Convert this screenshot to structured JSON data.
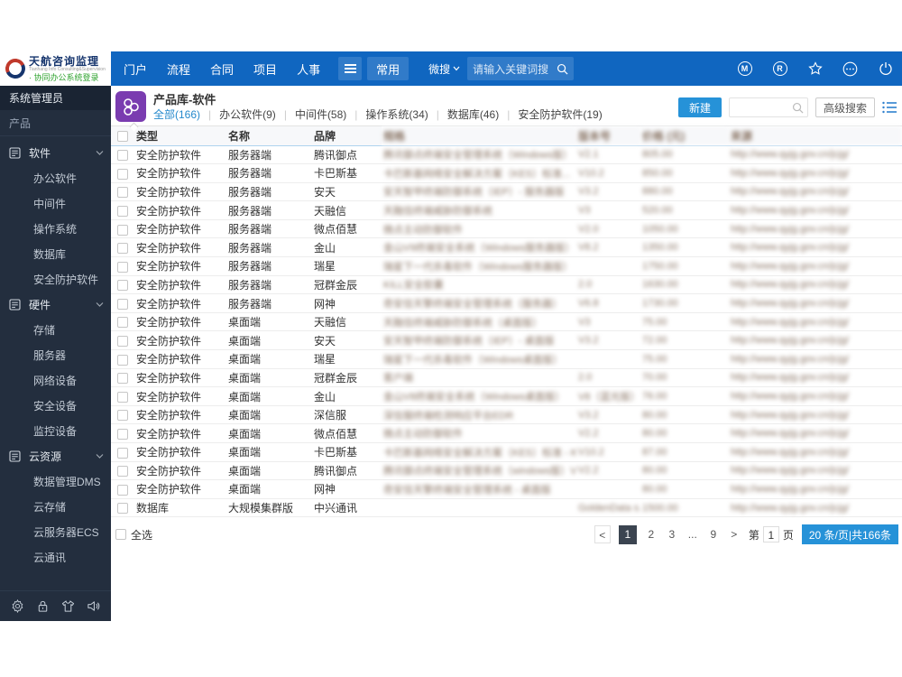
{
  "topbar": {
    "logo": {
      "title": "天航咨询监理",
      "subtitle": "Tianhang Info Consulting&Supervision",
      "tagline": "· 协同办公系统登录"
    },
    "nav_items": [
      "门户",
      "流程",
      "合同",
      "项目",
      "人事"
    ],
    "nav_active": "常用",
    "search": {
      "scope": "微搜",
      "placeholder": "请输入关键词搜"
    },
    "right_icons": [
      "m-badge",
      "r-badge",
      "star",
      "more",
      "power"
    ]
  },
  "sidebar": {
    "role": "系统管理员",
    "section": "产品",
    "groups": [
      {
        "label": "软件",
        "items": [
          "办公软件",
          "中间件",
          "操作系统",
          "数据库",
          "安全防护软件"
        ]
      },
      {
        "label": "硬件",
        "items": [
          "存储",
          "服务器",
          "网络设备",
          "安全设备",
          "监控设备"
        ]
      },
      {
        "label": "云资源",
        "items": [
          "数据管理DMS",
          "云存储",
          "云服务器ECS",
          "云通讯"
        ]
      }
    ],
    "footer_icons": [
      "gear",
      "lock",
      "theme",
      "sound"
    ]
  },
  "content": {
    "title": "产品库-软件",
    "tabs": [
      {
        "label": "全部(166)",
        "active": true
      },
      {
        "label": "办公软件(9)",
        "active": false
      },
      {
        "label": "中间件(58)",
        "active": false
      },
      {
        "label": "操作系统(34)",
        "active": false
      },
      {
        "label": "数据库(46)",
        "active": false
      },
      {
        "label": "安全防护软件(19)",
        "active": false
      }
    ],
    "toolbar": {
      "new_button": "新建",
      "advanced_search": "高级搜索"
    },
    "table": {
      "headers": {
        "type": "类型",
        "name": "名称",
        "brand": "品牌"
      },
      "blurred_headers": {
        "desc": "规格",
        "version": "版本号",
        "price": "价格 (元)",
        "source": "来源"
      },
      "rows": [
        {
          "type": "安全防护软件",
          "name": "服务器端",
          "brand": "腾讯御点",
          "desc": "腾讯御点终端安全管理系统（Windows版）",
          "version": "V2.1",
          "price": "805.00",
          "source": "http://www.qyjg.gov.cn/jcjg/"
        },
        {
          "type": "安全防护软件",
          "name": "服务器端",
          "brand": "卡巴斯基",
          "desc": "卡巴斯基网络安全解决方案（KES）标准...",
          "version": "V10.2",
          "price": "850.00",
          "source": "http://www.qyjg.gov.cn/jcjg/"
        },
        {
          "type": "安全防护软件",
          "name": "服务器端",
          "brand": "安天",
          "desc": "安天智甲终端防御系统（IEP）- 服务器版",
          "version": "V3.2",
          "price": "880.00",
          "source": "http://www.qyjg.gov.cn/jcjg/"
        },
        {
          "type": "安全防护软件",
          "name": "服务器端",
          "brand": "天融信",
          "desc": "天融信终端威胁防御系统",
          "version": "V3",
          "price": "520.00",
          "source": "http://www.qyjg.gov.cn/jcjg/"
        },
        {
          "type": "安全防护软件",
          "name": "服务器端",
          "brand": "微点佰慧",
          "desc": "微点主动防御软件",
          "version": "V2.0",
          "price": "1050.00",
          "source": "http://www.qyjg.gov.cn/jcjg/"
        },
        {
          "type": "安全防护软件",
          "name": "服务器端",
          "brand": "金山",
          "desc": "金山V9终端安全系统（Windows服务器版）",
          "version": "V8.2",
          "price": "1350.00",
          "source": "http://www.qyjg.gov.cn/jcjg/"
        },
        {
          "type": "安全防护软件",
          "name": "服务器端",
          "brand": "瑞星",
          "desc": "瑞星下一代杀毒软件（Windows服务器版）",
          "version": "",
          "price": "1750.00",
          "source": "http://www.qyjg.gov.cn/jcjg/"
        },
        {
          "type": "安全防护软件",
          "name": "服务器端",
          "brand": "冠群金辰",
          "desc": "KILL安全胶囊",
          "version": "2.0",
          "price": "1630.00",
          "source": "http://www.qyjg.gov.cn/jcjg/"
        },
        {
          "type": "安全防护软件",
          "name": "服务器端",
          "brand": "网神",
          "desc": "奇安信天擎终端安全管理系统（服务器）",
          "version": "V6.8",
          "price": "1730.00",
          "source": "http://www.qyjg.gov.cn/jcjg/"
        },
        {
          "type": "安全防护软件",
          "name": "桌面端",
          "brand": "天融信",
          "desc": "天融信终端威胁防御系统（桌面版）",
          "version": "V3",
          "price": "75.00",
          "source": "http://www.qyjg.gov.cn/jcjg/"
        },
        {
          "type": "安全防护软件",
          "name": "桌面端",
          "brand": "安天",
          "desc": "安天智甲终端防御系统（IEP）- 桌面版",
          "version": "V3.2",
          "price": "72.00",
          "source": "http://www.qyjg.gov.cn/jcjg/"
        },
        {
          "type": "安全防护软件",
          "name": "桌面端",
          "brand": "瑞星",
          "desc": "瑞星下一代杀毒软件（Windows桌面版）",
          "version": "",
          "price": "75.00",
          "source": "http://www.qyjg.gov.cn/jcjg/"
        },
        {
          "type": "安全防护软件",
          "name": "桌面端",
          "brand": "冠群金辰",
          "desc": "客户端",
          "version": "2.0",
          "price": "70.00",
          "source": "http://www.qyjg.gov.cn/jcjg/"
        },
        {
          "type": "安全防护软件",
          "name": "桌面端",
          "brand": "金山",
          "desc": "金山V8终端安全系统（Windows桌面版）",
          "version": "V8（蓝光版）",
          "price": "76.00",
          "source": "http://www.qyjg.gov.cn/jcjg/"
        },
        {
          "type": "安全防护软件",
          "name": "桌面端",
          "brand": "深信服",
          "desc": "深信服终端检测响应平台EDR",
          "version": "V3.2",
          "price": "80.00",
          "source": "http://www.qyjg.gov.cn/jcjg/"
        },
        {
          "type": "安全防护软件",
          "name": "桌面端",
          "brand": "微点佰慧",
          "desc": "微点主动防御软件",
          "version": "V2.2",
          "price": "80.00",
          "source": "http://www.qyjg.gov.cn/jcjg/"
        },
        {
          "type": "安全防护软件",
          "name": "桌面端",
          "brand": "卡巴斯基",
          "desc": "卡巴斯基网络安全解决方案（KES）标准 - KO...",
          "version": "V10.2",
          "price": "87.00",
          "source": "http://www.qyjg.gov.cn/jcjg/"
        },
        {
          "type": "安全防护软件",
          "name": "桌面端",
          "brand": "腾讯御点",
          "desc": "腾讯御点终端安全管理系统（windows版）V2.2",
          "version": "V2.2",
          "price": "80.00",
          "source": "http://www.qyjg.gov.cn/jcjg/"
        },
        {
          "type": "安全防护软件",
          "name": "桌面端",
          "brand": "网神",
          "desc": "奇安信天擎终端安全管理系统 - 桌面版",
          "version": "",
          "price": "80.00",
          "source": "http://www.qyjg.gov.cn/jcjg/"
        },
        {
          "type": "数据库",
          "name": "大规模集群版",
          "brand": "中兴通讯",
          "desc": "",
          "version": "GoldenData s...",
          "price": "1500.00",
          "source": "http://www.qyjg.gov.cn/jcjg/"
        }
      ]
    },
    "footer": {
      "select_all": "全选",
      "pager": {
        "prev": "<",
        "pages": [
          "1",
          "2",
          "3",
          "...",
          "9"
        ],
        "current": "1",
        "next": ">",
        "jump_prefix": "第",
        "jump_value": "1",
        "jump_suffix": "页",
        "summary": "20 条/页|共166条"
      }
    }
  },
  "colors": {
    "topbar": "#1066c0",
    "accent": "#2692d8",
    "sidebar": "#232e3e",
    "active_tab": "#2589cc"
  }
}
